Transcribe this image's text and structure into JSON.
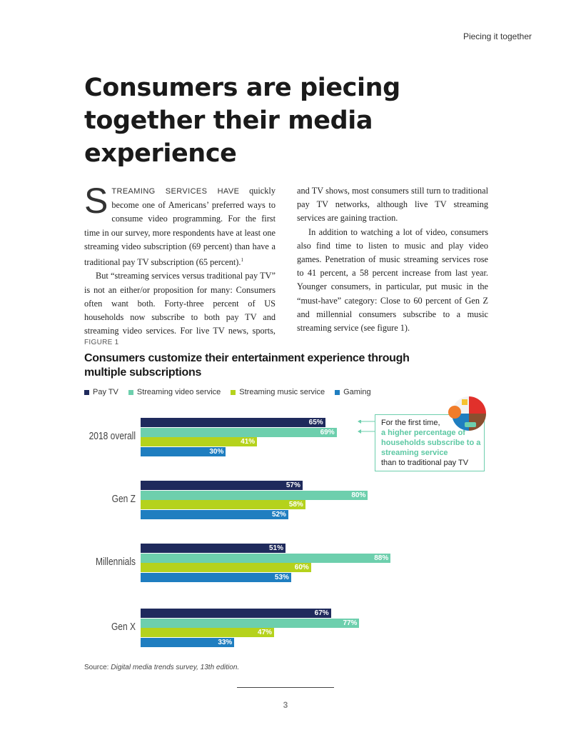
{
  "running_header": "Piecing it together",
  "title": "Consumers are piecing together their media experience",
  "body": {
    "dropcap": "S",
    "lead_smallcaps": "TREAMING SERVICES HAVE",
    "p1_rest": " quickly become one of Americans’ preferred ways to consume video programming. For the first time in our survey, more respondents have at least one streaming video subscription (69 percent) than have a traditional pay TV subscription (65 percent).",
    "footnote_mark": "1",
    "p2": "But “streaming services versus traditional pay TV” is not an either/or proposition for many: Consumers often want both. Forty-three percent of US households now subscribe to both pay TV and streaming video services. For live TV news, sports, and TV shows, most consumers still turn to traditional pay TV networks, although live TV streaming services are gaining traction.",
    "p3": "In addition to watching a lot of video, consumers also find time to listen to music and play video games. Penetration of music streaming services rose to 41 percent, a 58 percent increase from last year. Younger consumers, in particular, put music in the “must-have” category: Close to 60 percent of Gen Z and millennial consumers subscribe to a music streaming service (see figure 1)."
  },
  "figure": {
    "label": "FIGURE 1",
    "title": "Consumers customize their entertainment experience through multiple subscriptions",
    "callout": {
      "line1": "For the first time,",
      "highlight": "a higher percentage of households subscribe to a streaming service",
      "line3": "than to traditional pay TV"
    },
    "source_prefix": "Source: ",
    "source_italic": "Digital media trends survey, 13th edition."
  },
  "chart_data": {
    "type": "bar",
    "orientation": "horizontal",
    "title": "Consumers customize their entertainment experience through multiple subscriptions",
    "categories": [
      "2018 overall",
      "Gen Z",
      "Millennials",
      "Gen X"
    ],
    "series": [
      {
        "name": "Pay TV",
        "color": "#1f2a5c",
        "values": [
          65,
          57,
          51,
          67
        ]
      },
      {
        "name": "Streaming video service",
        "color": "#6dcfad",
        "values": [
          69,
          80,
          88,
          77
        ]
      },
      {
        "name": "Streaming music service",
        "color": "#b5d21c",
        "values": [
          41,
          58,
          60,
          47
        ]
      },
      {
        "name": "Gaming",
        "color": "#1f7ec0",
        "values": [
          30,
          52,
          53,
          33
        ]
      }
    ],
    "value_suffix": "%",
    "xlim": [
      0,
      100
    ],
    "legend": "top"
  },
  "page_number": "3"
}
